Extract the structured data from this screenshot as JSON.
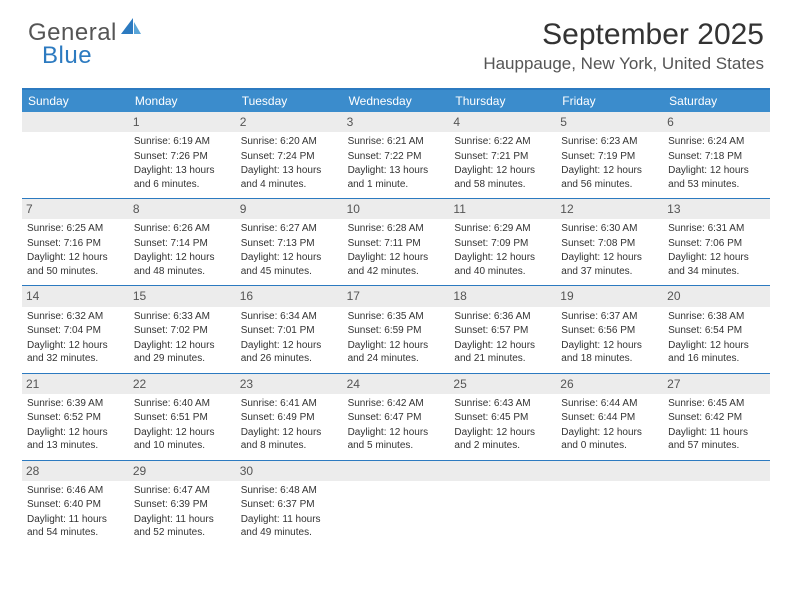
{
  "logo": {
    "text1": "General",
    "text2": "Blue"
  },
  "title": "September 2025",
  "location": "Hauppauge, New York, United States",
  "style": {
    "header_accent": "#2c7ac0",
    "dow_bg": "#3b8ccc",
    "dow_fg": "#ffffff",
    "daynum_bg": "#ececec",
    "text_color": "#333333",
    "week_border": "#2c7ac0",
    "page_bg": "#ffffff",
    "month_title_fontsize": 30,
    "location_fontsize": 17,
    "dow_fontsize": 12,
    "body_fontsize": 10
  },
  "dow": [
    "Sunday",
    "Monday",
    "Tuesday",
    "Wednesday",
    "Thursday",
    "Friday",
    "Saturday"
  ],
  "weeks": [
    [
      {
        "n": "",
        "sr": "",
        "ss": "",
        "dl": ""
      },
      {
        "n": "1",
        "sr": "Sunrise: 6:19 AM",
        "ss": "Sunset: 7:26 PM",
        "dl": "Daylight: 13 hours and 6 minutes."
      },
      {
        "n": "2",
        "sr": "Sunrise: 6:20 AM",
        "ss": "Sunset: 7:24 PM",
        "dl": "Daylight: 13 hours and 4 minutes."
      },
      {
        "n": "3",
        "sr": "Sunrise: 6:21 AM",
        "ss": "Sunset: 7:22 PM",
        "dl": "Daylight: 13 hours and 1 minute."
      },
      {
        "n": "4",
        "sr": "Sunrise: 6:22 AM",
        "ss": "Sunset: 7:21 PM",
        "dl": "Daylight: 12 hours and 58 minutes."
      },
      {
        "n": "5",
        "sr": "Sunrise: 6:23 AM",
        "ss": "Sunset: 7:19 PM",
        "dl": "Daylight: 12 hours and 56 minutes."
      },
      {
        "n": "6",
        "sr": "Sunrise: 6:24 AM",
        "ss": "Sunset: 7:18 PM",
        "dl": "Daylight: 12 hours and 53 minutes."
      }
    ],
    [
      {
        "n": "7",
        "sr": "Sunrise: 6:25 AM",
        "ss": "Sunset: 7:16 PM",
        "dl": "Daylight: 12 hours and 50 minutes."
      },
      {
        "n": "8",
        "sr": "Sunrise: 6:26 AM",
        "ss": "Sunset: 7:14 PM",
        "dl": "Daylight: 12 hours and 48 minutes."
      },
      {
        "n": "9",
        "sr": "Sunrise: 6:27 AM",
        "ss": "Sunset: 7:13 PM",
        "dl": "Daylight: 12 hours and 45 minutes."
      },
      {
        "n": "10",
        "sr": "Sunrise: 6:28 AM",
        "ss": "Sunset: 7:11 PM",
        "dl": "Daylight: 12 hours and 42 minutes."
      },
      {
        "n": "11",
        "sr": "Sunrise: 6:29 AM",
        "ss": "Sunset: 7:09 PM",
        "dl": "Daylight: 12 hours and 40 minutes."
      },
      {
        "n": "12",
        "sr": "Sunrise: 6:30 AM",
        "ss": "Sunset: 7:08 PM",
        "dl": "Daylight: 12 hours and 37 minutes."
      },
      {
        "n": "13",
        "sr": "Sunrise: 6:31 AM",
        "ss": "Sunset: 7:06 PM",
        "dl": "Daylight: 12 hours and 34 minutes."
      }
    ],
    [
      {
        "n": "14",
        "sr": "Sunrise: 6:32 AM",
        "ss": "Sunset: 7:04 PM",
        "dl": "Daylight: 12 hours and 32 minutes."
      },
      {
        "n": "15",
        "sr": "Sunrise: 6:33 AM",
        "ss": "Sunset: 7:02 PM",
        "dl": "Daylight: 12 hours and 29 minutes."
      },
      {
        "n": "16",
        "sr": "Sunrise: 6:34 AM",
        "ss": "Sunset: 7:01 PM",
        "dl": "Daylight: 12 hours and 26 minutes."
      },
      {
        "n": "17",
        "sr": "Sunrise: 6:35 AM",
        "ss": "Sunset: 6:59 PM",
        "dl": "Daylight: 12 hours and 24 minutes."
      },
      {
        "n": "18",
        "sr": "Sunrise: 6:36 AM",
        "ss": "Sunset: 6:57 PM",
        "dl": "Daylight: 12 hours and 21 minutes."
      },
      {
        "n": "19",
        "sr": "Sunrise: 6:37 AM",
        "ss": "Sunset: 6:56 PM",
        "dl": "Daylight: 12 hours and 18 minutes."
      },
      {
        "n": "20",
        "sr": "Sunrise: 6:38 AM",
        "ss": "Sunset: 6:54 PM",
        "dl": "Daylight: 12 hours and 16 minutes."
      }
    ],
    [
      {
        "n": "21",
        "sr": "Sunrise: 6:39 AM",
        "ss": "Sunset: 6:52 PM",
        "dl": "Daylight: 12 hours and 13 minutes."
      },
      {
        "n": "22",
        "sr": "Sunrise: 6:40 AM",
        "ss": "Sunset: 6:51 PM",
        "dl": "Daylight: 12 hours and 10 minutes."
      },
      {
        "n": "23",
        "sr": "Sunrise: 6:41 AM",
        "ss": "Sunset: 6:49 PM",
        "dl": "Daylight: 12 hours and 8 minutes."
      },
      {
        "n": "24",
        "sr": "Sunrise: 6:42 AM",
        "ss": "Sunset: 6:47 PM",
        "dl": "Daylight: 12 hours and 5 minutes."
      },
      {
        "n": "25",
        "sr": "Sunrise: 6:43 AM",
        "ss": "Sunset: 6:45 PM",
        "dl": "Daylight: 12 hours and 2 minutes."
      },
      {
        "n": "26",
        "sr": "Sunrise: 6:44 AM",
        "ss": "Sunset: 6:44 PM",
        "dl": "Daylight: 12 hours and 0 minutes."
      },
      {
        "n": "27",
        "sr": "Sunrise: 6:45 AM",
        "ss": "Sunset: 6:42 PM",
        "dl": "Daylight: 11 hours and 57 minutes."
      }
    ],
    [
      {
        "n": "28",
        "sr": "Sunrise: 6:46 AM",
        "ss": "Sunset: 6:40 PM",
        "dl": "Daylight: 11 hours and 54 minutes."
      },
      {
        "n": "29",
        "sr": "Sunrise: 6:47 AM",
        "ss": "Sunset: 6:39 PM",
        "dl": "Daylight: 11 hours and 52 minutes."
      },
      {
        "n": "30",
        "sr": "Sunrise: 6:48 AM",
        "ss": "Sunset: 6:37 PM",
        "dl": "Daylight: 11 hours and 49 minutes."
      },
      {
        "n": "",
        "sr": "",
        "ss": "",
        "dl": ""
      },
      {
        "n": "",
        "sr": "",
        "ss": "",
        "dl": ""
      },
      {
        "n": "",
        "sr": "",
        "ss": "",
        "dl": ""
      },
      {
        "n": "",
        "sr": "",
        "ss": "",
        "dl": ""
      }
    ]
  ]
}
